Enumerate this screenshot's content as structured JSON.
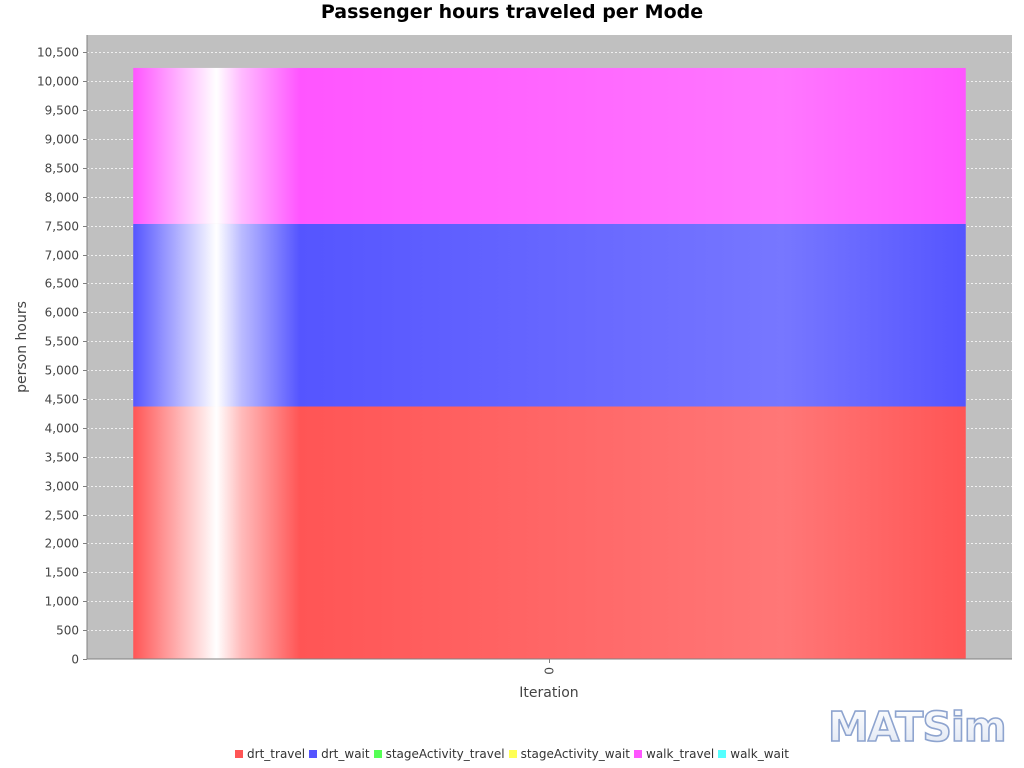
{
  "chart_data": {
    "type": "bar",
    "stacked": true,
    "title": "Passenger hours traveled per Mode",
    "xlabel": "Iteration",
    "ylabel": "person hours",
    "categories": [
      "0"
    ],
    "ylim": [
      0,
      10800
    ],
    "yticks": [
      0,
      500,
      1000,
      1500,
      2000,
      2500,
      3000,
      3500,
      4000,
      4500,
      5000,
      5500,
      6000,
      6500,
      7000,
      7500,
      8000,
      8500,
      9000,
      9500,
      10000,
      10500
    ],
    "ytick_labels": [
      "0",
      "500",
      "1,000",
      "1,500",
      "2,000",
      "2,500",
      "3,000",
      "3,500",
      "4,000",
      "4,500",
      "5,000",
      "5,500",
      "6,000",
      "6,500",
      "7,000",
      "7,500",
      "8,000",
      "8,500",
      "9,000",
      "9,500",
      "10,000",
      "10,500"
    ],
    "grid": true,
    "legend_position": "bottom",
    "series": [
      {
        "name": "drt_travel",
        "values": [
          4370
        ],
        "color": "#ff5555"
      },
      {
        "name": "drt_wait",
        "values": [
          3160
        ],
        "color": "#5555ff"
      },
      {
        "name": "stageActivity_travel",
        "values": [
          0
        ],
        "color": "#55ff55"
      },
      {
        "name": "stageActivity_wait",
        "values": [
          0
        ],
        "color": "#ffff55"
      },
      {
        "name": "walk_travel",
        "values": [
          2700
        ],
        "color": "#ff55ff"
      },
      {
        "name": "walk_wait",
        "values": [
          0
        ],
        "color": "#55ffff"
      }
    ]
  },
  "logo": {
    "text": "MATSim"
  }
}
